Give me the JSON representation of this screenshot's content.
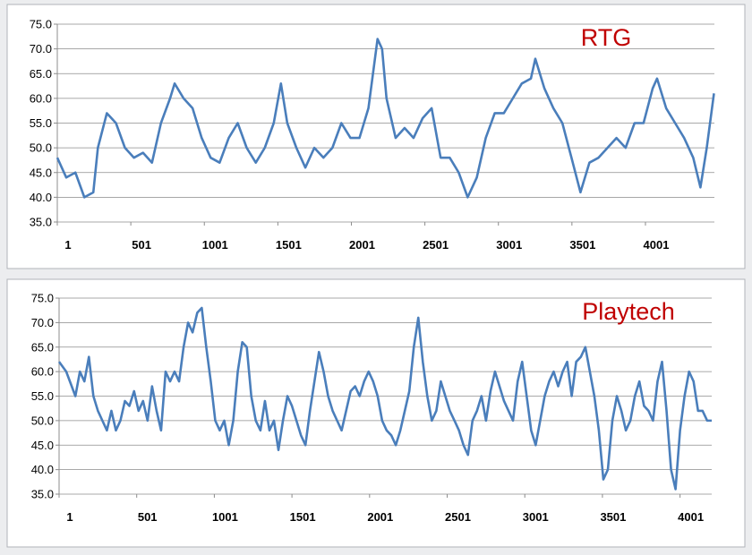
{
  "chart_data": [
    {
      "type": "line",
      "title": "RTG",
      "title_color": "#c00000",
      "color": "#4a7ebb",
      "grid": true,
      "xlim": [
        1,
        4470
      ],
      "xticks": [
        1,
        501,
        1001,
        1501,
        2001,
        2501,
        3001,
        3501,
        4001
      ],
      "ylim": [
        35,
        75
      ],
      "yticks": [
        {
          "value": 35,
          "label": "35.0"
        },
        {
          "value": 40,
          "label": "40.0"
        },
        {
          "value": 45,
          "label": "45.0"
        },
        {
          "value": 50,
          "label": "50.0"
        },
        {
          "value": 55,
          "label": "55.0"
        },
        {
          "value": 60,
          "label": "60.0"
        },
        {
          "value": 65,
          "label": "65.0"
        },
        {
          "value": 70,
          "label": "70.0"
        },
        {
          "value": 75,
          "label": "75.0"
        }
      ],
      "x": [
        1,
        62,
        124,
        185,
        246,
        277,
        338,
        400,
        461,
        522,
        584,
        645,
        706,
        768,
        799,
        860,
        921,
        983,
        1044,
        1105,
        1167,
        1228,
        1289,
        1351,
        1412,
        1473,
        1522,
        1565,
        1627,
        1688,
        1749,
        1811,
        1872,
        1933,
        1995,
        2056,
        2117,
        2179,
        2210,
        2240,
        2302,
        2363,
        2424,
        2486,
        2547,
        2608,
        2670,
        2731,
        2792,
        2854,
        2915,
        2976,
        3038,
        3099,
        3160,
        3222,
        3252,
        3314,
        3375,
        3436,
        3498,
        3559,
        3620,
        3682,
        3743,
        3804,
        3866,
        3927,
        3988,
        4050,
        4080,
        4142,
        4203,
        4264,
        4326,
        4375,
        4418,
        4467
      ],
      "values": [
        48,
        44,
        45,
        40,
        41,
        50,
        57,
        55,
        50,
        48,
        49,
        47,
        55,
        60,
        63,
        60,
        58,
        52,
        48,
        47,
        52,
        55,
        50,
        47,
        50,
        55,
        63,
        55,
        50,
        46,
        50,
        48,
        50,
        55,
        52,
        52,
        58,
        72,
        70,
        60,
        52,
        54,
        52,
        56,
        58,
        48,
        48,
        45,
        40,
        44,
        52,
        57,
        57,
        60,
        63,
        64,
        68,
        62,
        58,
        55,
        48,
        41,
        47,
        48,
        50,
        52,
        50,
        55,
        55,
        62,
        64,
        58,
        55,
        52,
        48,
        42,
        50,
        61
      ]
    },
    {
      "type": "line",
      "title": "Playtech",
      "title_color": "#c00000",
      "color": "#4a7ebb",
      "grid": true,
      "xlim": [
        1,
        4205
      ],
      "xticks": [
        1,
        501,
        1001,
        1501,
        2001,
        2501,
        3001,
        3501,
        4001
      ],
      "ylim": [
        35,
        75
      ],
      "yticks": [
        {
          "value": 35,
          "label": "35.0"
        },
        {
          "value": 40,
          "label": "40.0"
        },
        {
          "value": 45,
          "label": "45.0"
        },
        {
          "value": 50,
          "label": "50.0"
        },
        {
          "value": 55,
          "label": "55.0"
        },
        {
          "value": 60,
          "label": "60.0"
        },
        {
          "value": 65,
          "label": "65.0"
        },
        {
          "value": 70,
          "label": "70.0"
        },
        {
          "value": 75,
          "label": "75.0"
        }
      ],
      "x": [
        1,
        47,
        106,
        135,
        164,
        193,
        222,
        251,
        280,
        309,
        338,
        367,
        396,
        425,
        454,
        484,
        513,
        542,
        571,
        600,
        629,
        658,
        687,
        716,
        745,
        774,
        803,
        832,
        861,
        891,
        920,
        949,
        978,
        1007,
        1036,
        1065,
        1094,
        1123,
        1152,
        1181,
        1210,
        1239,
        1268,
        1298,
        1327,
        1356,
        1385,
        1414,
        1443,
        1472,
        1501,
        1530,
        1559,
        1588,
        1617,
        1646,
        1675,
        1705,
        1734,
        1763,
        1792,
        1821,
        1850,
        1879,
        1908,
        1937,
        1966,
        1995,
        2024,
        2053,
        2082,
        2111,
        2141,
        2170,
        2199,
        2228,
        2257,
        2286,
        2315,
        2344,
        2373,
        2402,
        2431,
        2460,
        2489,
        2518,
        2548,
        2577,
        2606,
        2635,
        2664,
        2693,
        2722,
        2751,
        2780,
        2809,
        2838,
        2867,
        2896,
        2925,
        2955,
        2984,
        3013,
        3042,
        3071,
        3100,
        3129,
        3158,
        3187,
        3216,
        3245,
        3274,
        3303,
        3332,
        3362,
        3391,
        3420,
        3449,
        3478,
        3507,
        3536,
        3565,
        3594,
        3623,
        3652,
        3681,
        3710,
        3739,
        3769,
        3798,
        3827,
        3856,
        3885,
        3914,
        3943,
        3972,
        4001,
        4030,
        4059,
        4088,
        4117,
        4146,
        4176,
        4205
      ],
      "values": [
        62,
        60,
        55,
        60,
        58,
        63,
        55,
        52,
        50,
        48,
        52,
        48,
        50,
        54,
        53,
        56,
        52,
        54,
        50,
        57,
        52,
        48,
        60,
        58,
        60,
        58,
        65,
        70,
        68,
        72,
        73,
        65,
        58,
        50,
        48,
        50,
        45,
        50,
        60,
        66,
        65,
        55,
        50,
        48,
        54,
        48,
        50,
        44,
        50,
        55,
        53,
        50,
        47,
        45,
        52,
        58,
        64,
        60,
        55,
        52,
        50,
        48,
        52,
        56,
        57,
        55,
        58,
        60,
        58,
        55,
        50,
        48,
        47,
        45,
        48,
        52,
        56,
        65,
        71,
        62,
        55,
        50,
        52,
        58,
        55,
        52,
        50,
        48,
        45,
        43,
        50,
        52,
        55,
        50,
        56,
        60,
        57,
        54,
        52,
        50,
        58,
        62,
        55,
        48,
        45,
        50,
        55,
        58,
        60,
        57,
        60,
        62,
        55,
        62,
        63,
        65,
        60,
        55,
        48,
        38,
        40,
        50,
        55,
        52,
        48,
        50,
        55,
        58,
        53,
        52,
        50,
        58,
        62,
        52,
        40,
        36,
        48,
        55,
        60,
        58,
        52,
        52,
        50,
        50
      ]
    }
  ]
}
